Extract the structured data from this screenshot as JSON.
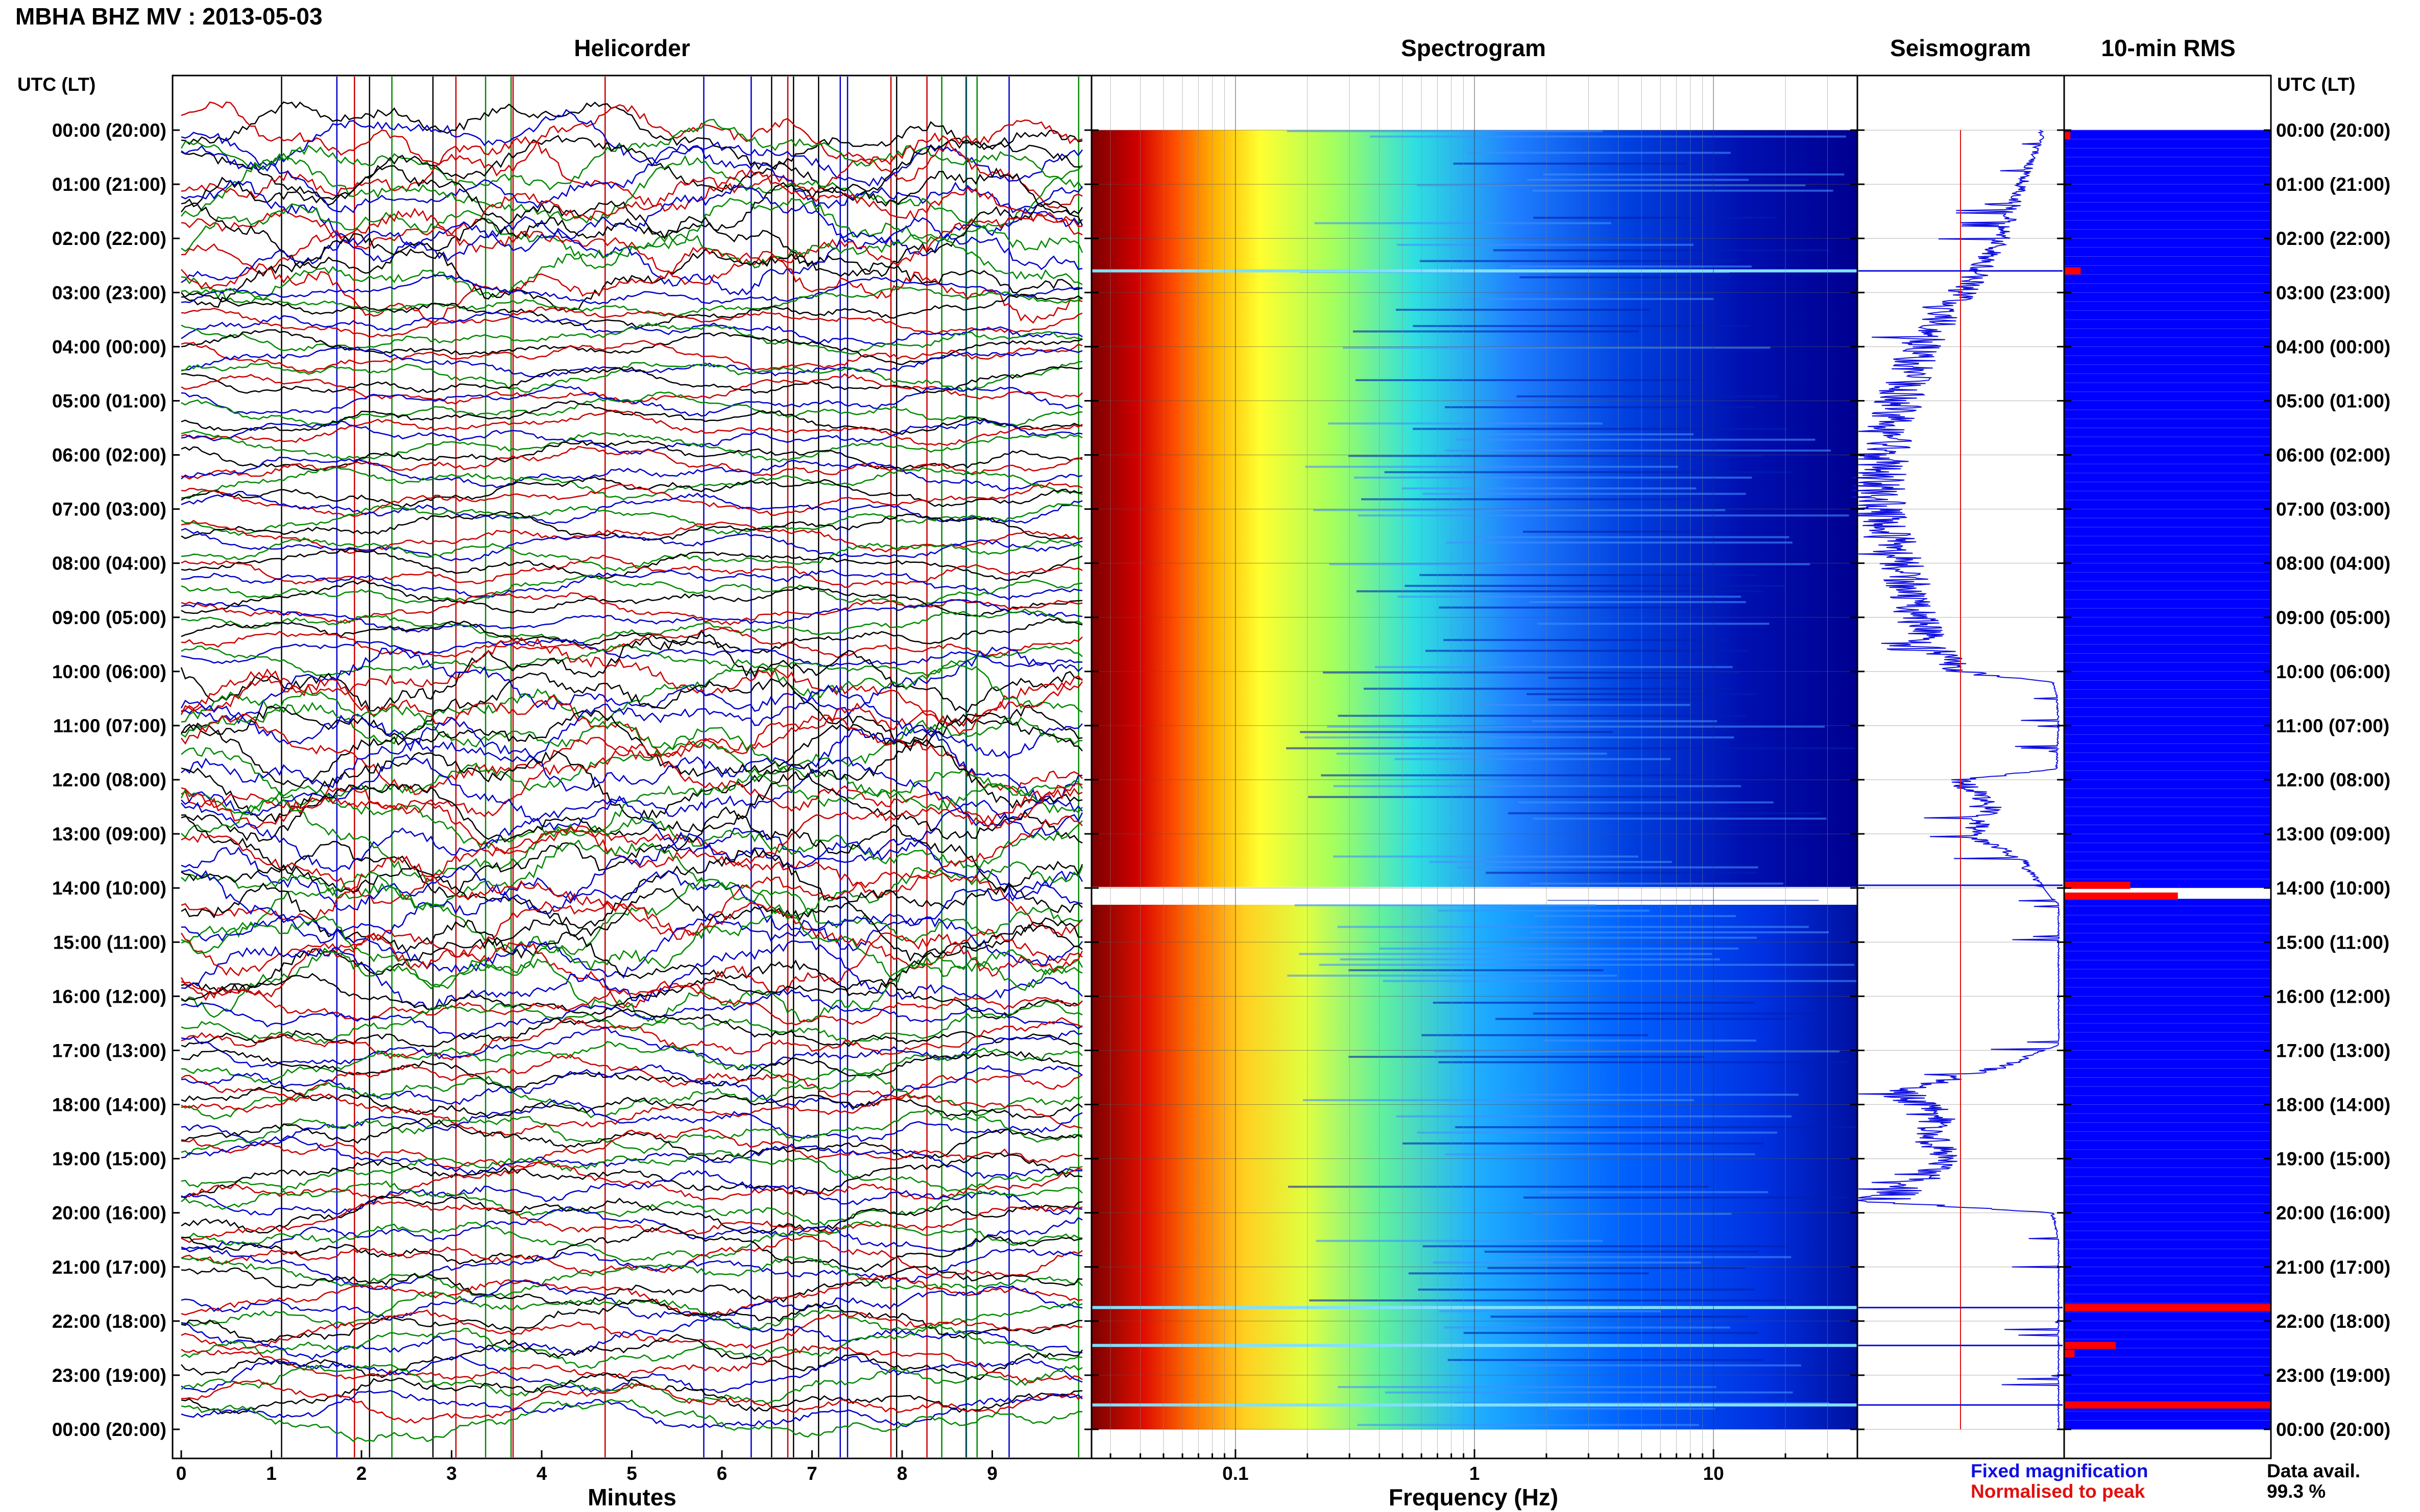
{
  "figure_title": "MBHA BHZ MV : 2013-05-03",
  "panels": {
    "helicorder": "Helicorder",
    "spectrogram": "Spectrogram",
    "seismogram": "Seismogram",
    "rms": "10-min RMS"
  },
  "time_axis_label": "UTC (LT)",
  "time_labels": [
    "00:00 (20:00)",
    "01:00 (21:00)",
    "02:00 (22:00)",
    "03:00 (23:00)",
    "04:00 (00:00)",
    "05:00 (01:00)",
    "06:00 (02:00)",
    "07:00 (03:00)",
    "08:00 (04:00)",
    "09:00 (05:00)",
    "10:00 (06:00)",
    "11:00 (07:00)",
    "12:00 (08:00)",
    "13:00 (09:00)",
    "14:00 (10:00)",
    "15:00 (11:00)",
    "16:00 (12:00)",
    "17:00 (13:00)",
    "18:00 (14:00)",
    "19:00 (15:00)",
    "20:00 (16:00)",
    "21:00 (17:00)",
    "22:00 (18:00)",
    "23:00 (19:00)",
    "00:00 (20:00)"
  ],
  "legend": {
    "fixed": "Fixed magnification",
    "normalised": "Normalised to peak",
    "fixed_color": "#1010e0",
    "normalised_color": "#e01010"
  },
  "data_avail": {
    "label": "Data avail.",
    "value": "99.3 %"
  },
  "chart_data": [
    {
      "type": "line",
      "panel": "helicorder",
      "xlabel": "Minutes",
      "xticks": [
        "0",
        "1",
        "2",
        "3",
        "4",
        "5",
        "6",
        "7",
        "8",
        "9"
      ],
      "xlim": [
        0,
        10
      ],
      "rows_per_hour": 6,
      "hours": 24,
      "trace_colors": [
        "#000000",
        "#cc0000",
        "#0000cc",
        "#008800"
      ]
    },
    {
      "type": "heatmap",
      "panel": "spectrogram",
      "xlabel": "Frequency (Hz)",
      "xscale": "log",
      "xticks": [
        "0.1",
        "1",
        "10"
      ],
      "xlim": [
        0.025,
        40
      ],
      "gap_hours": [
        14.0,
        14.2
      ],
      "colormap": [
        "#7f0000",
        "#ff0000",
        "#ffff00",
        "#00ffff",
        "#0000ff",
        "#000080"
      ]
    },
    {
      "type": "line",
      "panel": "seismogram",
      "series": [
        {
          "name": "Fixed magnification",
          "color": "#1010e0",
          "hours": [
            0.1,
            1,
            2,
            2.8,
            3.5,
            4,
            4.5,
            5,
            5.5,
            6,
            6.5,
            7,
            7.5,
            8,
            8.5,
            9,
            9.5,
            10,
            10.2,
            10.4,
            11,
            11.8,
            12,
            12.5,
            13,
            13.5,
            14,
            14.3,
            15,
            16,
            16.9,
            17.3,
            17.8,
            18.2,
            18.6,
            19,
            19.4,
            19.8,
            20,
            20.5,
            21,
            22,
            23,
            24
          ],
          "level": [
            0.1,
            0.2,
            0.3,
            0.45,
            0.6,
            0.7,
            0.75,
            0.8,
            0.85,
            0.88,
            0.9,
            0.9,
            0.85,
            0.8,
            0.75,
            0.72,
            0.65,
            0.5,
            0.05,
            0.03,
            0.02,
            0.03,
            0.5,
            0.35,
            0.45,
            0.2,
            0.1,
            0.02,
            0.02,
            0.02,
            0.02,
            0.3,
            0.8,
            0.6,
            0.65,
            0.55,
            0.7,
            0.9,
            0.05,
            0.02,
            0.02,
            0.02,
            0.02,
            0.02
          ]
        },
        {
          "name": "Normalised to peak",
          "color": "#e01010",
          "level": 0.5
        }
      ]
    },
    {
      "type": "bar",
      "panel": "rms",
      "orientation": "horizontal",
      "background_color": "#0000ff",
      "bar_color": "#ff0000",
      "events": [
        {
          "hour": 0.1,
          "value": 0.03
        },
        {
          "hour": 2.6,
          "value": 0.08
        },
        {
          "hour": 13.95,
          "value": 0.32
        },
        {
          "hour": 14.15,
          "value": 0.55
        },
        {
          "hour": 21.75,
          "value": 1.0
        },
        {
          "hour": 22.45,
          "value": 0.25
        },
        {
          "hour": 22.6,
          "value": 0.05
        },
        {
          "hour": 23.55,
          "value": 1.0
        }
      ]
    }
  ]
}
